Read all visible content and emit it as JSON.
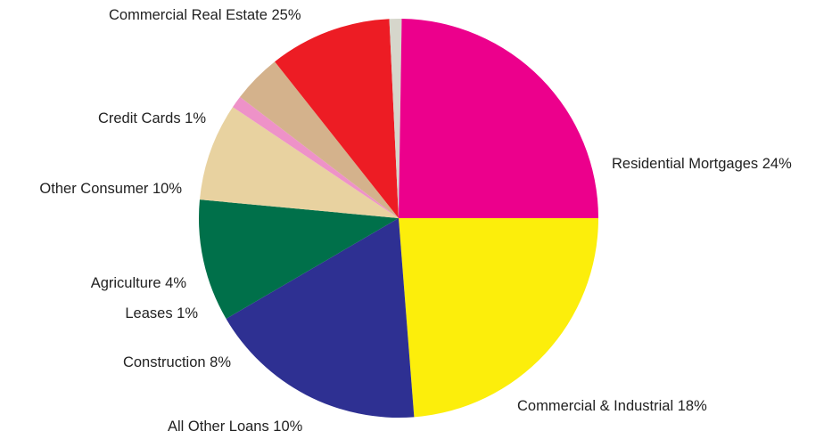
{
  "chart_data": {
    "type": "pie",
    "start": "Residential Mortgages",
    "direction": "clockwise",
    "slices": [
      {
        "label": "Residential Mortgages",
        "value": 24,
        "display": "Residential Mortgages 24%",
        "color": "#FCEE0B"
      },
      {
        "label": "Commercial & Industrial",
        "value": 18,
        "display": "Commercial & Industrial 18%",
        "color": "#2E3092"
      },
      {
        "label": "All Other Loans",
        "value": 10,
        "display": "All Other Loans 10%",
        "color": "#00704A"
      },
      {
        "label": "Construction",
        "value": 8,
        "display": "Construction 8%",
        "color": "#E8D2A0"
      },
      {
        "label": "Leases",
        "value": 1,
        "display": "Leases 1%",
        "color": "#EE92C8"
      },
      {
        "label": "Agriculture",
        "value": 4,
        "display": "Agriculture 4%",
        "color": "#D4B28C"
      },
      {
        "label": "Other Consumer",
        "value": 10,
        "display": "Other Consumer 10%",
        "color": "#ED1C24"
      },
      {
        "label": "Credit Cards",
        "value": 1,
        "display": "Credit Cards 1%",
        "color": "#D6D6CB"
      },
      {
        "label": "Commercial Real Estate",
        "value": 25,
        "display": "Commercial Real Estate 25%",
        "color": "#EC008C"
      }
    ]
  }
}
